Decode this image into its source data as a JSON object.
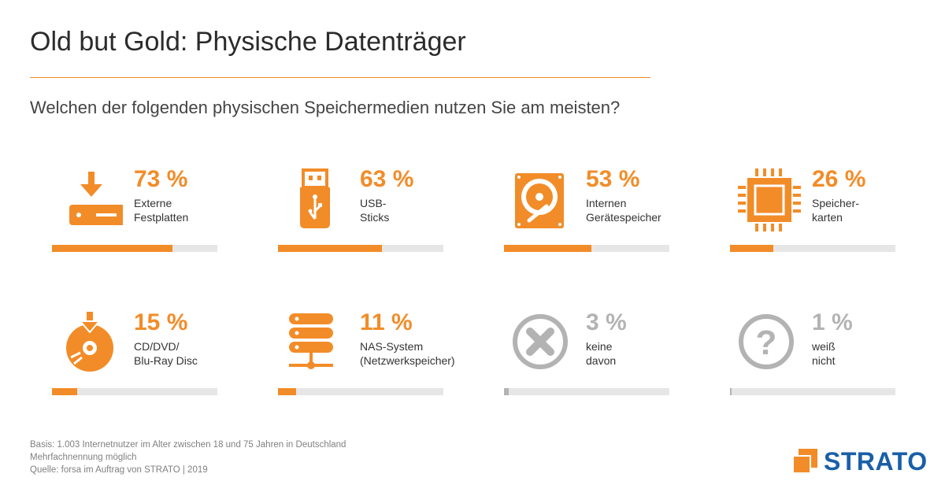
{
  "header": {
    "title": "Old but Gold: Physische Datenträger",
    "question": "Welchen der folgenden physischen Speichermedien nutzen Sie am meisten?"
  },
  "colors": {
    "accent": "#f28c28",
    "muted": "#b3b3b3",
    "track": "#e6e6e6",
    "brand": "#1a5fa8"
  },
  "chart_data": {
    "type": "bar",
    "categories": [
      "Externe Festplatten",
      "USB-Sticks",
      "Internen Gerätespeicher",
      "Speicherkarten",
      "CD/DVD/Blu-Ray Disc",
      "NAS-System (Netzwerkspeicher)",
      "keine davon",
      "weiß nicht"
    ],
    "values": [
      73,
      63,
      53,
      26,
      15,
      11,
      3,
      1
    ],
    "ylim": [
      0,
      100
    ],
    "items": [
      {
        "value": 73,
        "percent_label": "73 %",
        "label": "Externe\nFestplatten",
        "icon": "external-drive-icon",
        "muted": false
      },
      {
        "value": 63,
        "percent_label": "63 %",
        "label": "USB-\nSticks",
        "icon": "usb-stick-icon",
        "muted": false
      },
      {
        "value": 53,
        "percent_label": "53 %",
        "label": "Internen\nGerätespeicher",
        "icon": "hard-disk-icon",
        "muted": false
      },
      {
        "value": 26,
        "percent_label": "26 %",
        "label": "Speicher-\nkarten",
        "icon": "memory-chip-icon",
        "muted": false
      },
      {
        "value": 15,
        "percent_label": "15 %",
        "label": "CD/DVD/\nBlu-Ray Disc",
        "icon": "disc-download-icon",
        "muted": false
      },
      {
        "value": 11,
        "percent_label": "11 %",
        "label": "NAS-System\n(Netzwerkspeicher)",
        "icon": "server-icon",
        "muted": false
      },
      {
        "value": 3,
        "percent_label": "3 %",
        "label": "keine\ndavon",
        "icon": "close-circle-icon",
        "muted": true
      },
      {
        "value": 1,
        "percent_label": "1 %",
        "label": "weiß\nnicht",
        "icon": "question-circle-icon",
        "muted": true
      }
    ]
  },
  "footer": {
    "lines": [
      "Basis: 1.003 Internetnutzer im Alter zwischen 18 und 75 Jahren in Deutschland",
      "Mehrfachnennung möglich",
      "Quelle: forsa im Auftrag von STRATO | 2019"
    ]
  },
  "logo": {
    "text": "STRATO"
  }
}
